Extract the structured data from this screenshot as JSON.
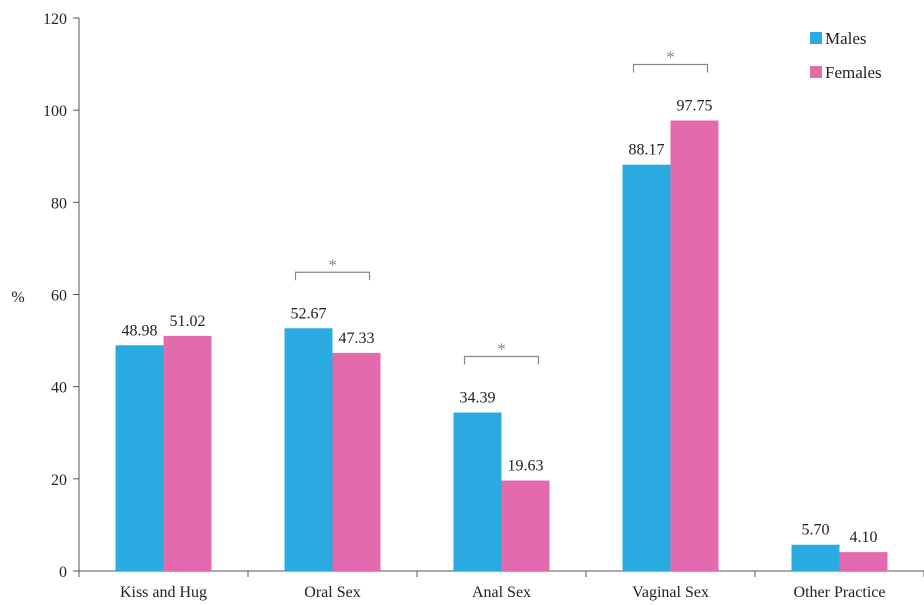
{
  "chart_data": {
    "type": "bar",
    "title": "",
    "xlabel": "",
    "ylabel": "%",
    "ylim": [
      0,
      120
    ],
    "yticks": [
      0,
      20,
      40,
      60,
      80,
      100,
      120
    ],
    "grid": false,
    "legend_position": "top-right",
    "categories": [
      "Kiss and Hug",
      "Oral Sex",
      "Anal Sex",
      "Vaginal Sex",
      "Other Practice"
    ],
    "series": [
      {
        "name": "Males",
        "color": "#29ABE2",
        "values": [
          48.98,
          52.67,
          34.39,
          88.17,
          5.7
        ],
        "labels": [
          "48.98",
          "52.67",
          "34.39",
          "88.17",
          "5.70"
        ]
      },
      {
        "name": "Females",
        "color": "#E36AAD",
        "values": [
          51.02,
          47.33,
          19.63,
          97.75,
          4.1
        ],
        "labels": [
          "51.02",
          "47.33",
          "19.63",
          "97.75",
          "4.10"
        ]
      }
    ],
    "significance": [
      {
        "category": "Oral Sex",
        "label": "*"
      },
      {
        "category": "Anal Sex",
        "label": "*"
      },
      {
        "category": "Vaginal Sex",
        "label": "*"
      }
    ]
  }
}
